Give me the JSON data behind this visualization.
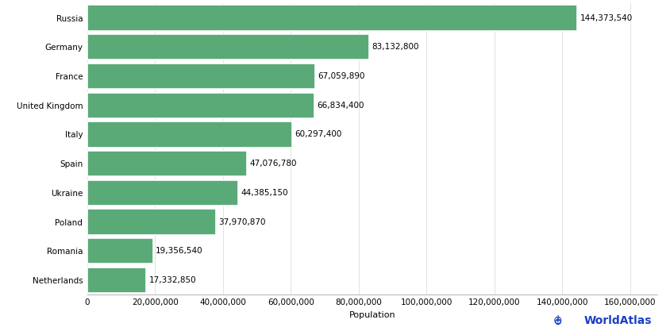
{
  "countries": [
    "Russia",
    "Germany",
    "France",
    "United Kingdom",
    "Italy",
    "Spain",
    "Ukraine",
    "Poland",
    "Romania",
    "Netherlands"
  ],
  "populations": [
    144373540,
    83132800,
    67059890,
    66834400,
    60297400,
    47076780,
    44385150,
    37970870,
    19356540,
    17332850
  ],
  "bar_color": "#5aaa78",
  "background_color": "#ffffff",
  "xlabel": "Population",
  "xlim": [
    0,
    168000000
  ],
  "xticks": [
    0,
    20000000,
    40000000,
    60000000,
    80000000,
    100000000,
    120000000,
    140000000,
    160000000
  ],
  "label_values": [
    "144,373,540",
    "83,132,800",
    "67,059,890",
    "66,834,400",
    "60,297,400",
    "47,076,780",
    "44,385,150",
    "37,970,870",
    "19,356,540",
    "17,332,850"
  ],
  "watermark_text": "WorldAtlas",
  "watermark_color": "#1a3fc4",
  "label_fontsize": 7.5,
  "tick_fontsize": 7.5,
  "bar_height": 0.88,
  "grid_color": "#dddddd",
  "spine_color": "#aaaaaa"
}
